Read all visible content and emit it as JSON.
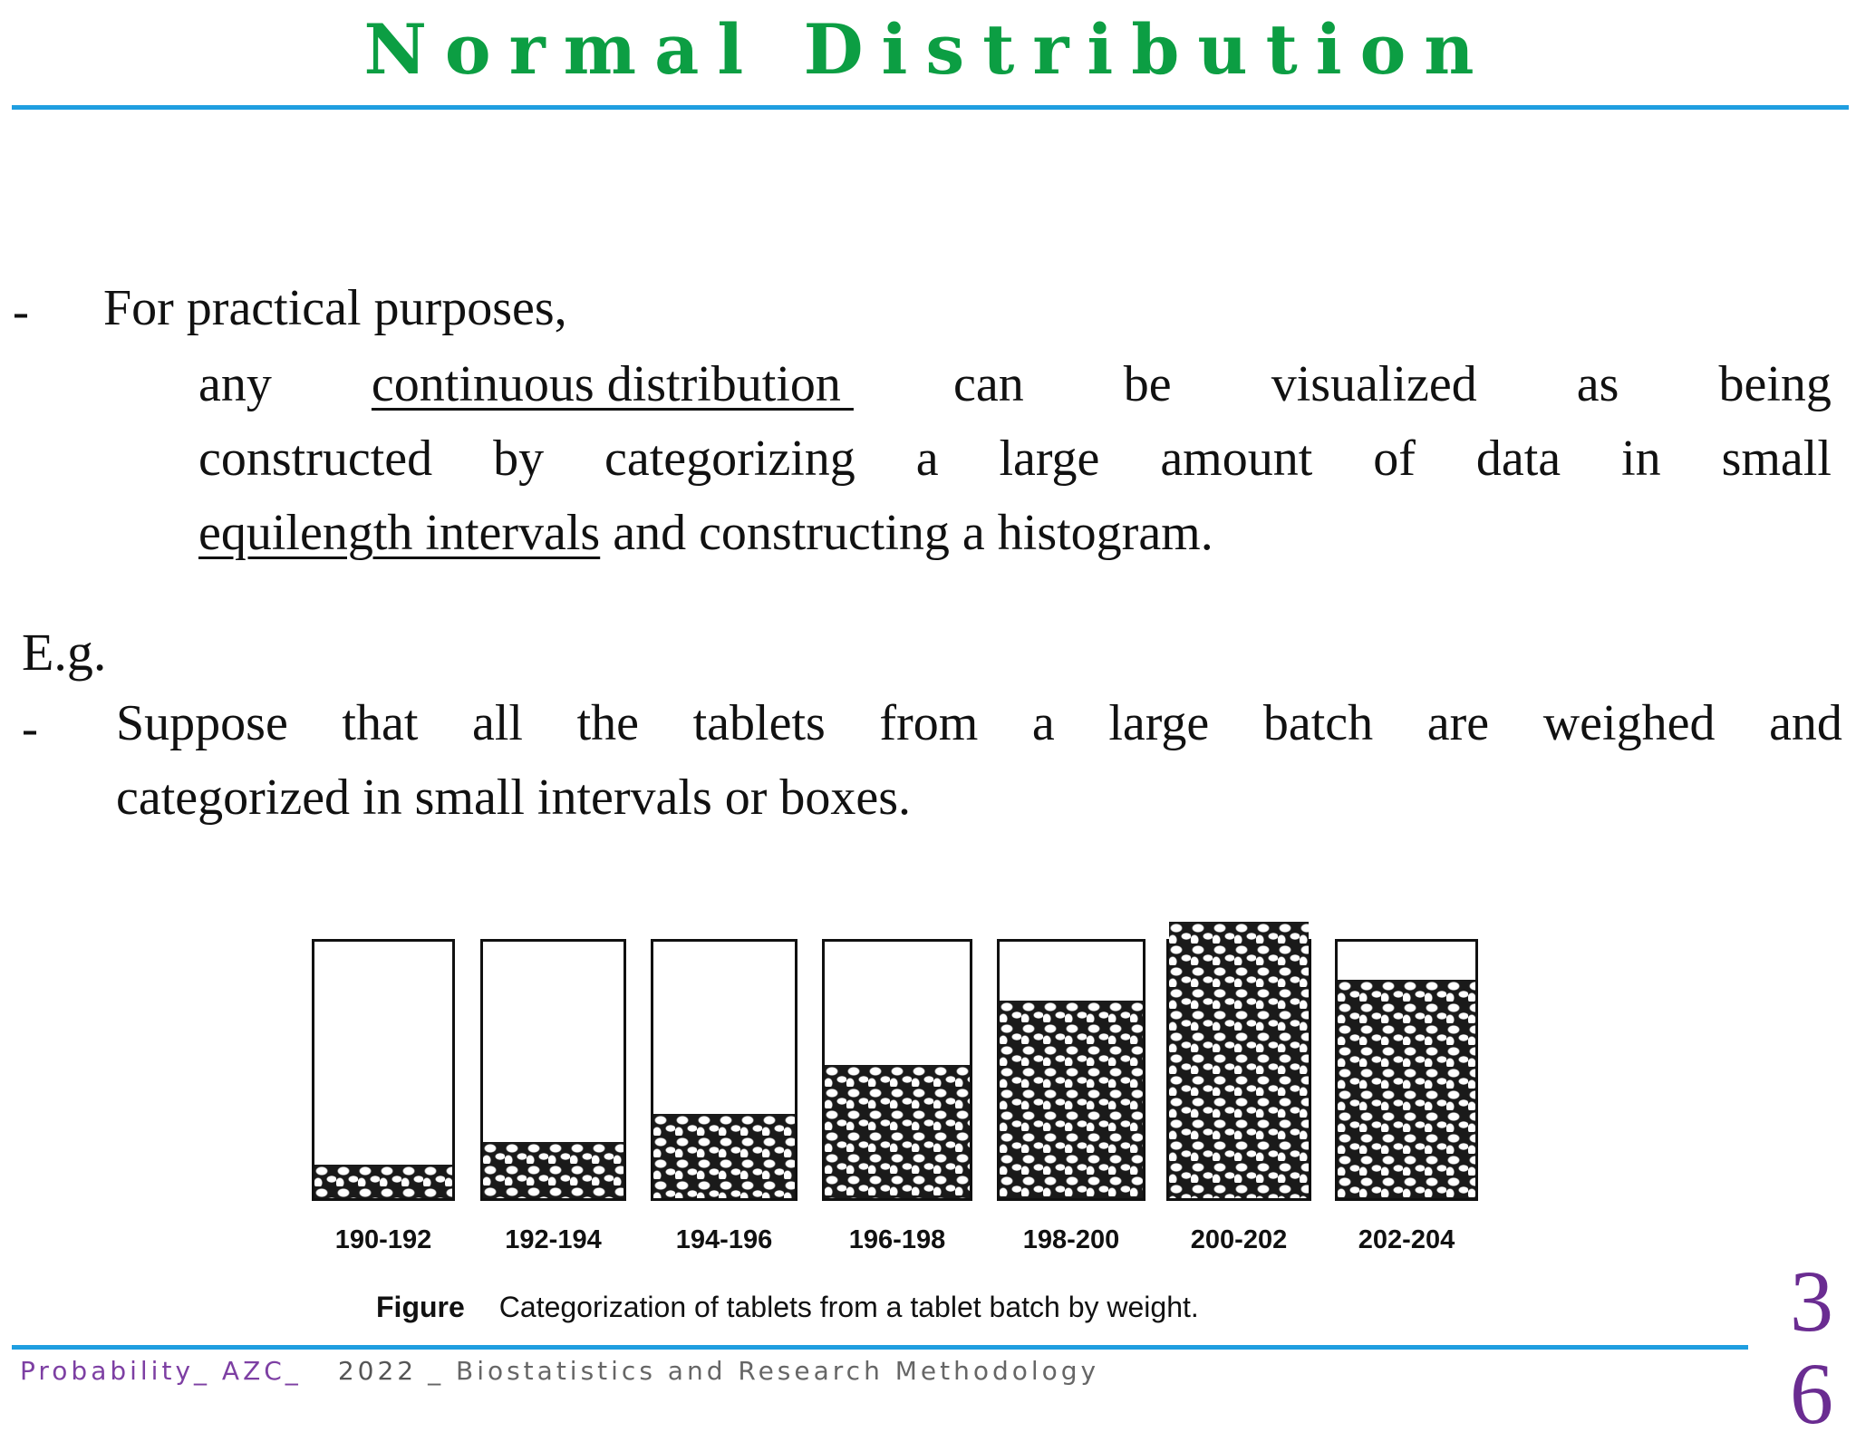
{
  "title": "Normal Distribution",
  "bullet1": {
    "dash": "-",
    "lead": "For practical purposes,",
    "line1": [
      "any",
      "continuous distribution ",
      "can",
      "be",
      "visualized",
      "as",
      "being"
    ],
    "line2": [
      "constructed",
      "by",
      "categorizing",
      "a",
      "large",
      "amount",
      "of",
      "data",
      "in",
      "small"
    ],
    "line3_underlined": "equilength intervals",
    "line3_rest": " and constructing a histogram."
  },
  "eg_label": "E.g.",
  "bullet2": {
    "dash": "-",
    "line1": [
      "Suppose",
      "that",
      "all",
      "the",
      "tablets",
      "from",
      "a",
      "large",
      "batch",
      "are",
      "weighed",
      "and"
    ],
    "line2": "categorized in small intervals or boxes."
  },
  "chart_data": {
    "type": "bar",
    "categories": [
      "190-192",
      "192-194",
      "194-196",
      "196-198",
      "198-200",
      "200-202",
      "202-204"
    ],
    "values": [
      0.13,
      0.22,
      0.33,
      0.52,
      0.77,
      1.0,
      0.85
    ],
    "title": "Categorization of tablets from a tablet batch by weight.",
    "caption_label": "Figure"
  },
  "page_number": {
    "top": "3",
    "bottom": "6"
  },
  "footer": {
    "left": "Probability_ AZC_",
    "year": "2022",
    "course": "_ Biostatistics and Research Methodology"
  }
}
